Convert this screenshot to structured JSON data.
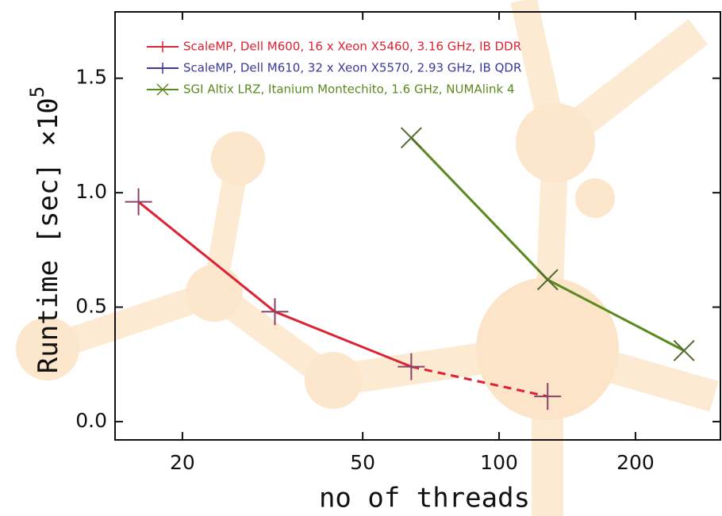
{
  "chart_data": {
    "type": "line",
    "x_label": "no of threads",
    "y_label": "Runtime [sec] ×10",
    "y_label_exponent": "5",
    "x": [
      16,
      32,
      64,
      128,
      256
    ],
    "series": [
      {
        "name": "ScaleMP, Dell M600, 16 x Xeon X5460, 3.16 GHz, IB DDR",
        "color": "#dd2233",
        "marker": "plus",
        "dashed_last_segment": true,
        "values": [
          0.96,
          0.48,
          0.24,
          0.11,
          null
        ]
      },
      {
        "name": "ScaleMP, Dell M610, 32 x Xeon X5570, 2.93 GHz, IB QDR",
        "color": "#3a3a9a",
        "marker": "plus",
        "values": [
          null,
          null,
          null,
          null,
          null
        ]
      },
      {
        "name": "SGI Altix LRZ, Itanium Montechito, 1.6 GHz, NUMAlink 4",
        "color": "#5a8a1e",
        "marker": "cross",
        "values": [
          null,
          null,
          1.24,
          0.62,
          0.31
        ]
      }
    ],
    "xscale": "log",
    "xlim": [
      14.2,
      308
    ],
    "xticks": [
      20,
      50,
      100,
      200
    ],
    "ylim": [
      -0.08,
      1.79
    ],
    "yticks": [
      {
        "value": 0,
        "label": "0.0"
      },
      0.5,
      {
        "value": 1,
        "label": "1.0"
      },
      1.5
    ],
    "legend": "upper left"
  }
}
